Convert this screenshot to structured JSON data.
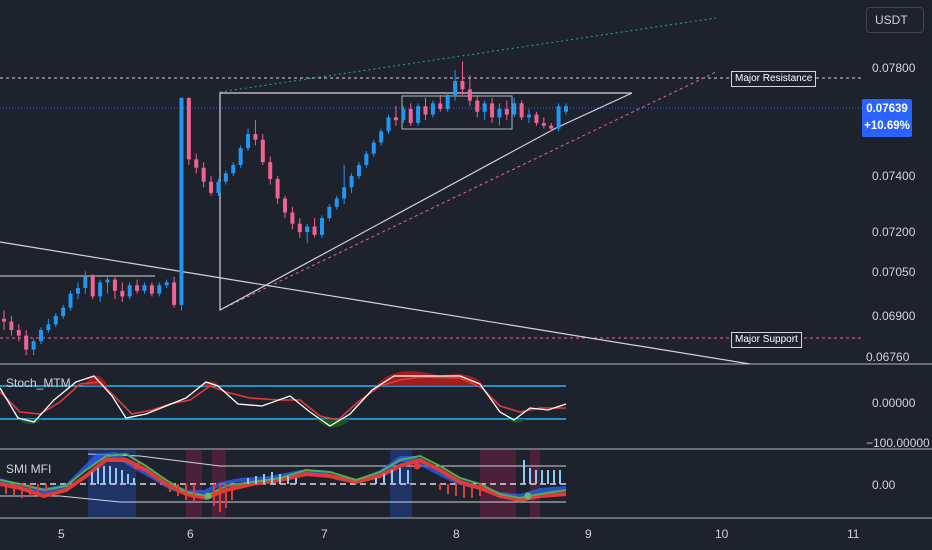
{
  "header": {
    "currency": "USDT"
  },
  "last_price": {
    "value": "0.07639",
    "change": "+10.69%"
  },
  "price_axis": [
    "0.07800",
    "0.07400",
    "0.07200",
    "0.07050",
    "0.06900",
    "0.06760"
  ],
  "time_axis": [
    "5",
    "6",
    "7",
    "8",
    "9",
    "10",
    "11"
  ],
  "annotations": {
    "major_resistance": "Major Resistance",
    "major_support": "Major Support"
  },
  "indicators": {
    "stoch": {
      "title": "Stoch_MTM",
      "axis": [
        "0.00000",
        "−100.00000"
      ]
    },
    "smi": {
      "title": "SMI MFI",
      "axis": [
        "0.00"
      ]
    }
  },
  "colors": {
    "up": "#2196f3",
    "down": "#f06292",
    "accent": "#2962ff",
    "background": "#1e222d"
  },
  "chart_data": {
    "type": "candlestick",
    "x_label_ticks": [
      "5",
      "6",
      "7",
      "8",
      "9",
      "10",
      "11"
    ],
    "ylim": [
      0.0674,
      0.0785
    ],
    "levels": {
      "major_resistance": 0.0779,
      "major_support": 0.0686,
      "last": 0.07639
    },
    "candles": [
      {
        "o": 0.069,
        "h": 0.0693,
        "l": 0.0686,
        "c": 0.0689
      },
      {
        "o": 0.0689,
        "h": 0.0691,
        "l": 0.0684,
        "c": 0.0686
      },
      {
        "o": 0.0686,
        "h": 0.0688,
        "l": 0.0682,
        "c": 0.0684
      },
      {
        "o": 0.0684,
        "h": 0.0686,
        "l": 0.0677,
        "c": 0.0679
      },
      {
        "o": 0.0679,
        "h": 0.0683,
        "l": 0.0677,
        "c": 0.0682
      },
      {
        "o": 0.0682,
        "h": 0.0687,
        "l": 0.0681,
        "c": 0.0686
      },
      {
        "o": 0.0686,
        "h": 0.069,
        "l": 0.0685,
        "c": 0.0688
      },
      {
        "o": 0.0688,
        "h": 0.0692,
        "l": 0.0687,
        "c": 0.0691
      },
      {
        "o": 0.0691,
        "h": 0.0695,
        "l": 0.069,
        "c": 0.0694
      },
      {
        "o": 0.0694,
        "h": 0.07,
        "l": 0.0693,
        "c": 0.0699
      },
      {
        "o": 0.0699,
        "h": 0.0703,
        "l": 0.0697,
        "c": 0.0701
      },
      {
        "o": 0.0701,
        "h": 0.0707,
        "l": 0.0699,
        "c": 0.0705
      },
      {
        "o": 0.0705,
        "h": 0.0706,
        "l": 0.0697,
        "c": 0.0698
      },
      {
        "o": 0.0698,
        "h": 0.0704,
        "l": 0.0696,
        "c": 0.0703
      },
      {
        "o": 0.0703,
        "h": 0.0705,
        "l": 0.0699,
        "c": 0.0704
      },
      {
        "o": 0.0704,
        "h": 0.0705,
        "l": 0.0697,
        "c": 0.07
      },
      {
        "o": 0.07,
        "h": 0.0703,
        "l": 0.0696,
        "c": 0.0698
      },
      {
        "o": 0.0698,
        "h": 0.0703,
        "l": 0.0697,
        "c": 0.0702
      },
      {
        "o": 0.0702,
        "h": 0.0704,
        "l": 0.0699,
        "c": 0.07
      },
      {
        "o": 0.07,
        "h": 0.0703,
        "l": 0.0699,
        "c": 0.0702
      },
      {
        "o": 0.0702,
        "h": 0.0703,
        "l": 0.0698,
        "c": 0.0699
      },
      {
        "o": 0.0699,
        "h": 0.0703,
        "l": 0.0698,
        "c": 0.0702
      },
      {
        "o": 0.0702,
        "h": 0.0704,
        "l": 0.0701,
        "c": 0.0703
      },
      {
        "o": 0.0703,
        "h": 0.0705,
        "l": 0.0694,
        "c": 0.0695
      },
      {
        "o": 0.0695,
        "h": 0.0769,
        "l": 0.0693,
        "c": 0.0769
      },
      {
        "o": 0.0769,
        "h": 0.0769,
        "l": 0.0745,
        "c": 0.0747
      },
      {
        "o": 0.0747,
        "h": 0.0749,
        "l": 0.0742,
        "c": 0.0744
      },
      {
        "o": 0.0744,
        "h": 0.0746,
        "l": 0.0737,
        "c": 0.0739
      },
      {
        "o": 0.0739,
        "h": 0.0741,
        "l": 0.0734,
        "c": 0.0735
      },
      {
        "o": 0.0735,
        "h": 0.074,
        "l": 0.0734,
        "c": 0.0739
      },
      {
        "o": 0.0739,
        "h": 0.0743,
        "l": 0.0738,
        "c": 0.0742
      },
      {
        "o": 0.0742,
        "h": 0.0746,
        "l": 0.0741,
        "c": 0.0745
      },
      {
        "o": 0.0745,
        "h": 0.0752,
        "l": 0.0744,
        "c": 0.0751
      },
      {
        "o": 0.0751,
        "h": 0.0758,
        "l": 0.075,
        "c": 0.0756
      },
      {
        "o": 0.0756,
        "h": 0.0761,
        "l": 0.0752,
        "c": 0.0754
      },
      {
        "o": 0.0754,
        "h": 0.0756,
        "l": 0.0745,
        "c": 0.0746
      },
      {
        "o": 0.0746,
        "h": 0.0748,
        "l": 0.0738,
        "c": 0.074
      },
      {
        "o": 0.074,
        "h": 0.0741,
        "l": 0.0731,
        "c": 0.0733
      },
      {
        "o": 0.0733,
        "h": 0.0734,
        "l": 0.0726,
        "c": 0.0728
      },
      {
        "o": 0.0728,
        "h": 0.073,
        "l": 0.0722,
        "c": 0.0724
      },
      {
        "o": 0.0724,
        "h": 0.0726,
        "l": 0.0719,
        "c": 0.0721
      },
      {
        "o": 0.0721,
        "h": 0.0724,
        "l": 0.0717,
        "c": 0.0723
      },
      {
        "o": 0.0723,
        "h": 0.0726,
        "l": 0.0719,
        "c": 0.072
      },
      {
        "o": 0.072,
        "h": 0.0727,
        "l": 0.0719,
        "c": 0.0726
      },
      {
        "o": 0.0726,
        "h": 0.0731,
        "l": 0.0725,
        "c": 0.073
      },
      {
        "o": 0.073,
        "h": 0.0734,
        "l": 0.0729,
        "c": 0.0733
      },
      {
        "o": 0.0733,
        "h": 0.0745,
        "l": 0.0731,
        "c": 0.0737
      },
      {
        "o": 0.0737,
        "h": 0.0742,
        "l": 0.0735,
        "c": 0.0741
      },
      {
        "o": 0.0741,
        "h": 0.0746,
        "l": 0.074,
        "c": 0.0745
      },
      {
        "o": 0.0745,
        "h": 0.075,
        "l": 0.0744,
        "c": 0.0749
      },
      {
        "o": 0.0749,
        "h": 0.0754,
        "l": 0.0748,
        "c": 0.0753
      },
      {
        "o": 0.0753,
        "h": 0.0758,
        "l": 0.0752,
        "c": 0.0757
      },
      {
        "o": 0.0757,
        "h": 0.0763,
        "l": 0.0756,
        "c": 0.0762
      },
      {
        "o": 0.0762,
        "h": 0.0766,
        "l": 0.0759,
        "c": 0.0761
      },
      {
        "o": 0.0761,
        "h": 0.0766,
        "l": 0.076,
        "c": 0.0765
      },
      {
        "o": 0.0765,
        "h": 0.0767,
        "l": 0.0759,
        "c": 0.076
      },
      {
        "o": 0.076,
        "h": 0.0767,
        "l": 0.0759,
        "c": 0.0766
      },
      {
        "o": 0.0766,
        "h": 0.0769,
        "l": 0.0761,
        "c": 0.0763
      },
      {
        "o": 0.0763,
        "h": 0.0768,
        "l": 0.0762,
        "c": 0.0767
      },
      {
        "o": 0.0767,
        "h": 0.077,
        "l": 0.0764,
        "c": 0.0765
      },
      {
        "o": 0.0765,
        "h": 0.0771,
        "l": 0.0764,
        "c": 0.077
      },
      {
        "o": 0.077,
        "h": 0.0779,
        "l": 0.0768,
        "c": 0.0775
      },
      {
        "o": 0.0775,
        "h": 0.0782,
        "l": 0.077,
        "c": 0.0772
      },
      {
        "o": 0.0772,
        "h": 0.0777,
        "l": 0.0766,
        "c": 0.0768
      },
      {
        "o": 0.0768,
        "h": 0.077,
        "l": 0.0762,
        "c": 0.0764
      },
      {
        "o": 0.0764,
        "h": 0.0768,
        "l": 0.0761,
        "c": 0.0767
      },
      {
        "o": 0.0767,
        "h": 0.0769,
        "l": 0.076,
        "c": 0.0762
      },
      {
        "o": 0.0762,
        "h": 0.0767,
        "l": 0.0759,
        "c": 0.0765
      },
      {
        "o": 0.0765,
        "h": 0.0768,
        "l": 0.0761,
        "c": 0.0763
      },
      {
        "o": 0.0763,
        "h": 0.0769,
        "l": 0.0762,
        "c": 0.0767
      },
      {
        "o": 0.0767,
        "h": 0.0768,
        "l": 0.0761,
        "c": 0.0762
      },
      {
        "o": 0.0762,
        "h": 0.0765,
        "l": 0.076,
        "c": 0.0763
      },
      {
        "o": 0.0763,
        "h": 0.0764,
        "l": 0.0759,
        "c": 0.076
      },
      {
        "o": 0.076,
        "h": 0.0762,
        "l": 0.0758,
        "c": 0.0759
      },
      {
        "o": 0.0759,
        "h": 0.076,
        "l": 0.0757,
        "c": 0.0758
      },
      {
        "o": 0.0758,
        "h": 0.0767,
        "l": 0.0757,
        "c": 0.0766
      },
      {
        "o": 0.0764,
        "h": 0.0767,
        "l": 0.0763,
        "c": 0.0766
      }
    ]
  }
}
